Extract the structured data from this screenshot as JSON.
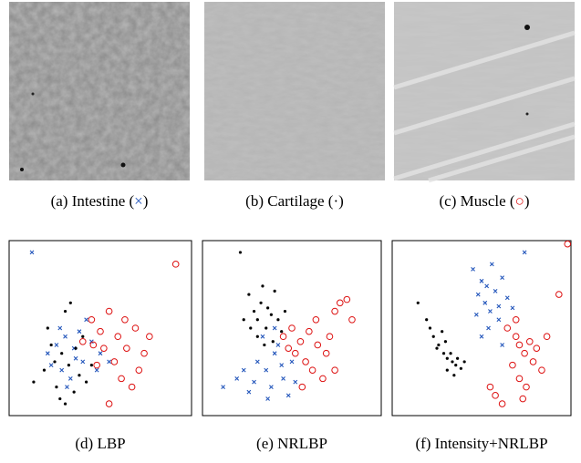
{
  "images": [
    {
      "caption": [
        "(a) Intestine (",
        "×",
        ")"
      ],
      "symbol_color": "#2255bb"
    },
    {
      "caption": [
        "(b) Cartilage (",
        "·",
        ")"
      ],
      "symbol_color": "#000000"
    },
    {
      "caption": [
        "(c) Muscle (",
        "○",
        ")"
      ],
      "symbol_color": "#dd1111"
    }
  ],
  "chart_data": [
    {
      "type": "scatter",
      "title": "(d) LBP",
      "xlim": [
        -2,
        102
      ],
      "ylim": [
        -2,
        102
      ],
      "series": [
        {
          "marker": "x",
          "color": "#2255bb",
          "x": [
            11,
            20,
            25,
            30,
            35,
            40,
            45,
            28,
            50,
            33,
            38,
            42,
            22,
            48,
            36,
            27,
            55,
            31
          ],
          "values": [
            95,
            35,
            40,
            45,
            38,
            30,
            42,
            25,
            35,
            20,
            48,
            55,
            28,
            25,
            32,
            50,
            30,
            15
          ]
        },
        {
          "marker": "dot",
          "color": "#000000",
          "x": [
            12,
            18,
            22,
            25,
            28,
            30,
            32,
            35,
            38,
            40,
            33,
            20,
            27,
            42,
            36,
            24,
            30,
            45
          ],
          "values": [
            18,
            25,
            40,
            15,
            35,
            60,
            28,
            12,
            22,
            45,
            65,
            50,
            8,
            18,
            38,
            30,
            5,
            28
          ]
        },
        {
          "marker": "circle",
          "color": "#dd1111",
          "x": [
            93,
            40,
            45,
            50,
            55,
            60,
            65,
            70,
            58,
            62,
            68,
            75,
            52,
            48,
            72,
            55,
            64,
            78,
            46
          ],
          "values": [
            88,
            42,
            55,
            48,
            60,
            45,
            38,
            50,
            30,
            20,
            15,
            35,
            38,
            28,
            25,
            5,
            55,
            45,
            40
          ]
        }
      ]
    },
    {
      "type": "scatter",
      "title": "(e) NRLBP",
      "xlim": [
        -2,
        102
      ],
      "ylim": [
        -2,
        102
      ],
      "series": [
        {
          "marker": "x",
          "color": "#2255bb",
          "x": [
            10,
            18,
            25,
            30,
            35,
            40,
            45,
            48,
            38,
            42,
            28,
            33,
            50,
            36,
            22,
            44,
            52,
            40
          ],
          "values": [
            15,
            20,
            12,
            30,
            25,
            35,
            20,
            10,
            15,
            40,
            18,
            45,
            30,
            8,
            25,
            28,
            18,
            50
          ]
        },
        {
          "marker": "dot",
          "color": "#000000",
          "x": [
            20,
            25,
            28,
            30,
            32,
            35,
            38,
            40,
            34,
            30,
            42,
            26,
            36,
            44,
            22,
            39,
            33,
            46
          ],
          "values": [
            95,
            70,
            60,
            55,
            65,
            50,
            58,
            72,
            40,
            45,
            55,
            50,
            62,
            48,
            55,
            42,
            75,
            60
          ]
        },
        {
          "marker": "circle",
          "color": "#dd1111",
          "x": [
            78,
            82,
            75,
            85,
            45,
            50,
            55,
            60,
            65,
            70,
            58,
            62,
            68,
            52,
            48,
            72,
            64,
            56,
            75
          ],
          "values": [
            65,
            67,
            60,
            55,
            45,
            50,
            42,
            48,
            40,
            35,
            30,
            25,
            20,
            35,
            38,
            45,
            55,
            15,
            25
          ]
        }
      ]
    },
    {
      "type": "scatter",
      "title": "(f) Intensity+NRLBP",
      "xlim": [
        -2,
        102
      ],
      "ylim": [
        -2,
        102
      ],
      "series": [
        {
          "marker": "x",
          "color": "#2255bb",
          "x": [
            45,
            48,
            50,
            52,
            55,
            58,
            60,
            62,
            54,
            50,
            65,
            56,
            62,
            47,
            75,
            68,
            53,
            60
          ],
          "values": [
            85,
            70,
            78,
            65,
            60,
            72,
            55,
            80,
            50,
            45,
            68,
            88,
            40,
            58,
            95,
            62,
            75,
            63
          ]
        },
        {
          "marker": "dot",
          "color": "#000000",
          "x": [
            13,
            18,
            22,
            25,
            28,
            30,
            33,
            35,
            38,
            24,
            30,
            27,
            32,
            36,
            20,
            34,
            40,
            29
          ],
          "values": [
            65,
            55,
            45,
            40,
            35,
            32,
            30,
            28,
            26,
            38,
            25,
            48,
            35,
            32,
            50,
            22,
            30,
            42
          ]
        },
        {
          "marker": "circle",
          "color": "#dd1111",
          "x": [
            100,
            95,
            65,
            70,
            72,
            75,
            78,
            80,
            82,
            68,
            72,
            76,
            55,
            58,
            62,
            85,
            70,
            88,
            74
          ],
          "values": [
            100,
            70,
            50,
            45,
            40,
            35,
            42,
            30,
            38,
            28,
            20,
            15,
            15,
            10,
            5,
            25,
            55,
            45,
            8
          ]
        }
      ]
    }
  ]
}
